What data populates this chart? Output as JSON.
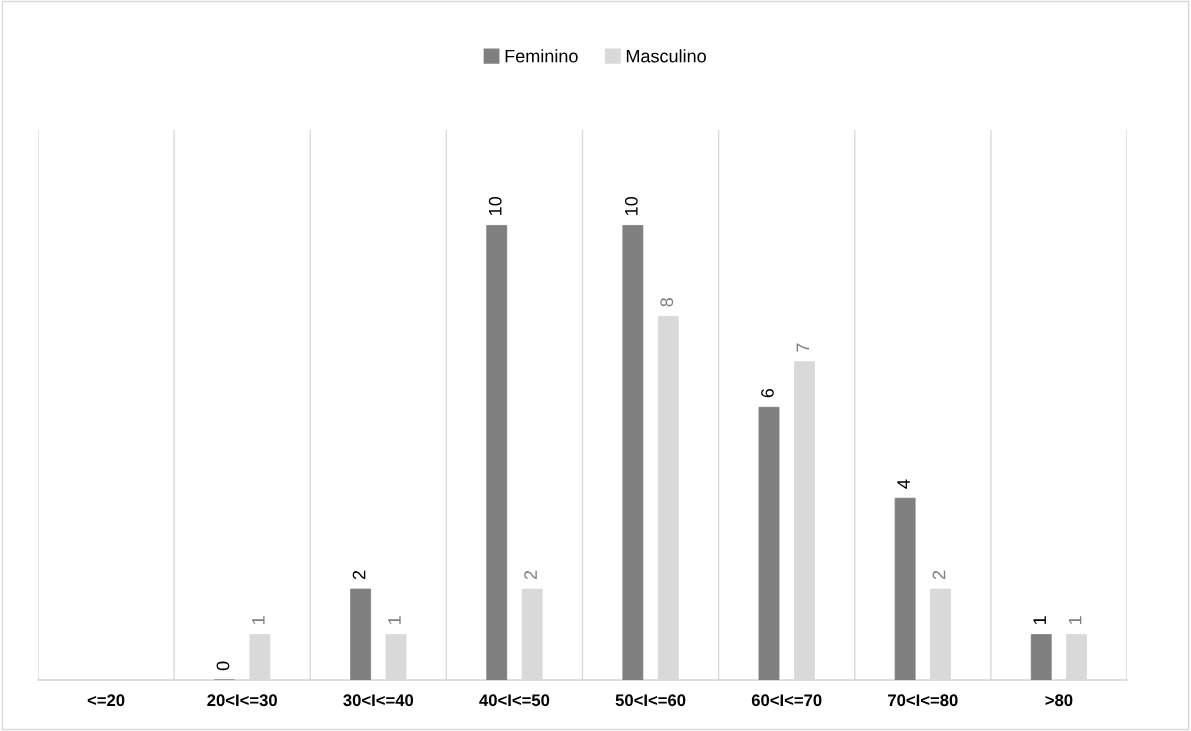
{
  "chart_data": {
    "type": "bar",
    "categories": [
      "<=20",
      "20<I<=30",
      "30<I<=40",
      "40<I<=50",
      "50<I<=60",
      "60<I<=70",
      "70<I<=80",
      ">80"
    ],
    "series": [
      {
        "name": "Feminino",
        "color": "#7f7f7f",
        "values": [
          null,
          0,
          2,
          10,
          10,
          6,
          4,
          1
        ]
      },
      {
        "name": "Masculino",
        "color": "#d9d9d9",
        "values": [
          null,
          1,
          1,
          2,
          8,
          7,
          2,
          1
        ]
      }
    ],
    "data_labels": true,
    "grid": "x",
    "legend": "top"
  }
}
